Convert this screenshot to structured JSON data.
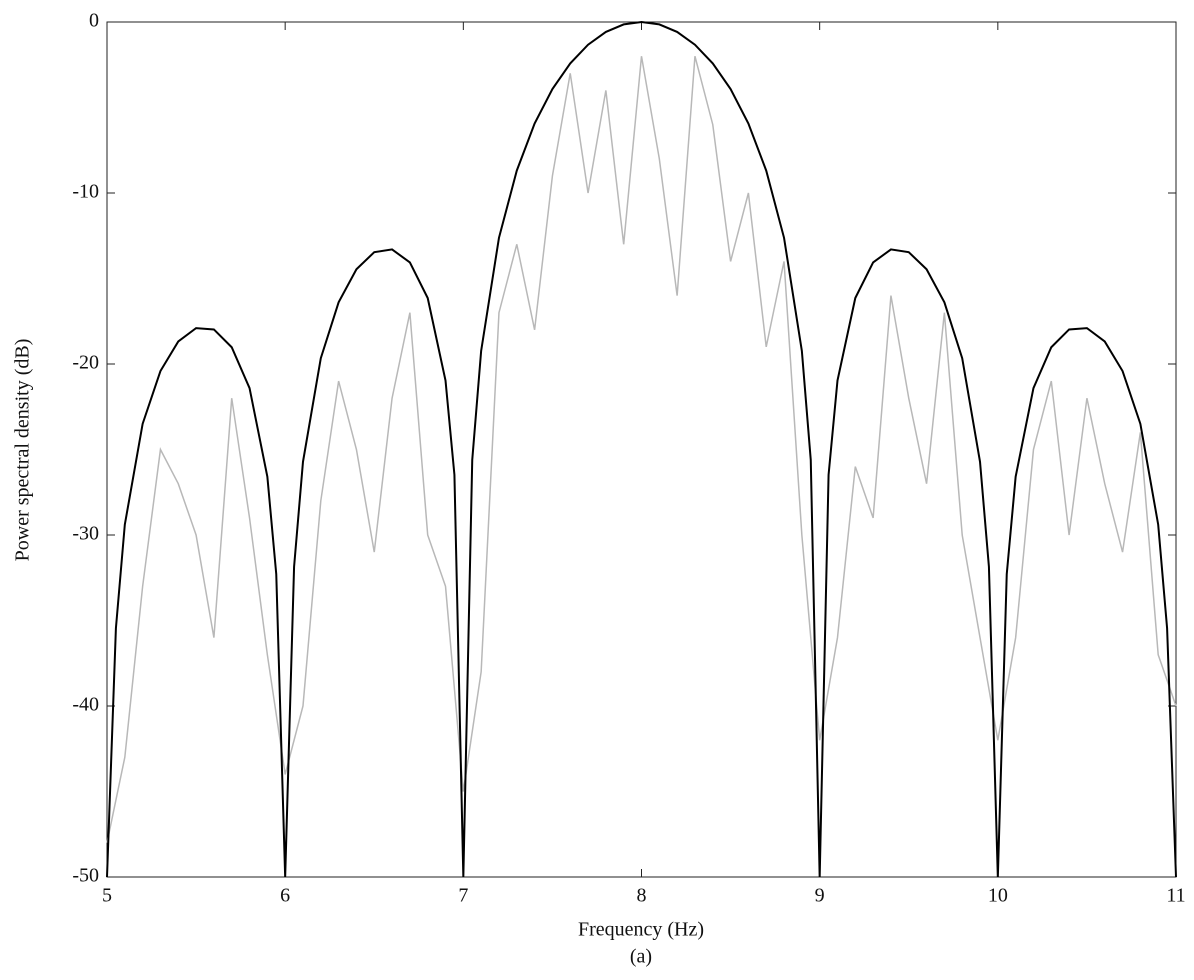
{
  "chart_data": {
    "type": "line",
    "xlabel": "Frequency (Hz)",
    "subtitle": "(a)",
    "ylabel": "Power spectral density (dB)",
    "xlim": [
      5,
      11
    ],
    "ylim": [
      -50,
      0
    ],
    "xticks": [
      5,
      6,
      7,
      8,
      9,
      10,
      11
    ],
    "yticks": [
      -50,
      -40,
      -30,
      -20,
      -10,
      0
    ],
    "series": [
      {
        "color": "#b8b8b8",
        "x": [
          5.0,
          5.1,
          5.2,
          5.3,
          5.4,
          5.5,
          5.6,
          5.7,
          5.8,
          5.9,
          6.0,
          6.1,
          6.2,
          6.3,
          6.4,
          6.5,
          6.6,
          6.7,
          6.8,
          6.9,
          7.0,
          7.1,
          7.2,
          7.3,
          7.4,
          7.5,
          7.6,
          7.7,
          7.8,
          7.9,
          8.0,
          8.1,
          8.2,
          8.3,
          8.4,
          8.5,
          8.6,
          8.7,
          8.8,
          8.9,
          9.0,
          9.1,
          9.2,
          9.3,
          9.4,
          9.5,
          9.6,
          9.7,
          9.8,
          9.9,
          10.0,
          10.1,
          10.2,
          10.3,
          10.4,
          10.5,
          10.6,
          10.7,
          10.8,
          10.9,
          11.0
        ],
        "values": [
          -48,
          -43,
          -33,
          -25,
          -27,
          -30,
          -36,
          -22,
          -29,
          -37,
          -44,
          -40,
          -28,
          -21,
          -25,
          -31,
          -22,
          -17,
          -30,
          -33,
          -45,
          -38,
          -17,
          -13,
          -18,
          -9,
          -3,
          -10,
          -4,
          -13,
          -2,
          -8,
          -16,
          -2,
          -6,
          -14,
          -10,
          -19,
          -14,
          -30,
          -42,
          -36,
          -26,
          -29,
          -16,
          -22,
          -27,
          -17,
          -30,
          -36,
          -42,
          -36,
          -25,
          -21,
          -30,
          -22,
          -27,
          -31,
          -24,
          -37,
          -40
        ]
      },
      {
        "color": "#000000",
        "x": [
          5.0,
          5.05,
          5.1,
          5.2,
          5.3,
          5.4,
          5.5,
          5.6,
          5.7,
          5.8,
          5.9,
          5.95,
          6.0,
          6.05,
          6.1,
          6.2,
          6.3,
          6.4,
          6.5,
          6.6,
          6.7,
          6.8,
          6.9,
          6.95,
          7.0,
          7.05,
          7.1,
          7.2,
          7.3,
          7.4,
          7.5,
          7.6,
          7.7,
          7.8,
          7.9,
          8.0,
          8.1,
          8.2,
          8.3,
          8.4,
          8.5,
          8.6,
          8.7,
          8.8,
          8.9,
          8.95,
          9.0,
          9.05,
          9.1,
          9.2,
          9.3,
          9.4,
          9.5,
          9.6,
          9.7,
          9.8,
          9.9,
          9.95,
          10.0,
          10.05,
          10.1,
          10.2,
          10.3,
          10.4,
          10.5,
          10.6,
          10.7,
          10.8,
          10.9,
          10.95,
          11.0
        ],
        "values": [
          -50,
          -35.45,
          -29.39,
          -23.5,
          -20.41,
          -18.68,
          -17.9,
          -17.98,
          -19.02,
          -21.41,
          -26.59,
          -32.29,
          -50,
          -31.86,
          -25.72,
          -19.66,
          -16.39,
          -14.46,
          -13.46,
          -13.3,
          -14.06,
          -16.14,
          -20.97,
          -26.48,
          -50,
          -25.61,
          -19.23,
          -12.62,
          -8.69,
          -5.94,
          -3.92,
          -2.42,
          -1.33,
          -0.58,
          -0.14,
          0,
          -0.14,
          -0.58,
          -1.33,
          -2.42,
          -3.92,
          -5.94,
          -8.69,
          -12.62,
          -19.23,
          -25.61,
          -50,
          -26.48,
          -20.97,
          -16.14,
          -14.06,
          -13.3,
          -13.46,
          -14.46,
          -16.39,
          -19.66,
          -25.72,
          -31.86,
          -50,
          -32.29,
          -26.59,
          -21.41,
          -19.02,
          -17.98,
          -17.9,
          -18.68,
          -20.41,
          -23.5,
          -29.39,
          -35.45,
          -50
        ]
      }
    ]
  }
}
